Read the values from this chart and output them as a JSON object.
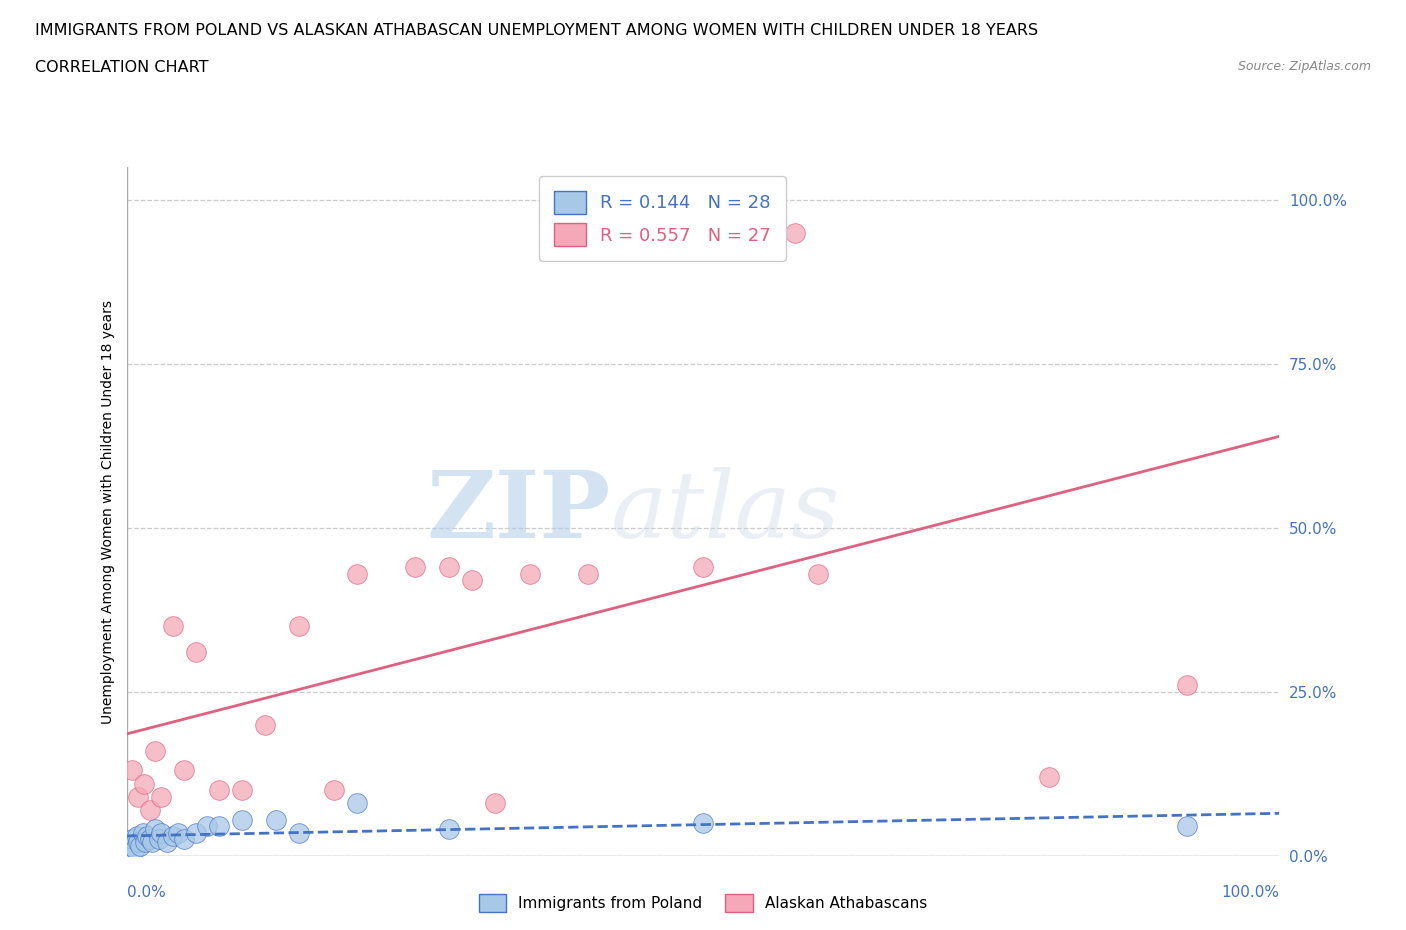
{
  "title": "IMMIGRANTS FROM POLAND VS ALASKAN ATHABASCAN UNEMPLOYMENT AMONG WOMEN WITH CHILDREN UNDER 18 YEARS",
  "subtitle": "CORRELATION CHART",
  "source": "Source: ZipAtlas.com",
  "ylabel": "Unemployment Among Women with Children Under 18 years",
  "ytick_vals": [
    0,
    25,
    50,
    75,
    100
  ],
  "xlim": [
    0,
    100
  ],
  "ylim": [
    0,
    105
  ],
  "poland_R": 0.144,
  "poland_N": 28,
  "athabascan_R": 0.557,
  "athabascan_N": 27,
  "poland_color": "#a8c8e8",
  "athabascan_color": "#f4a8b8",
  "poland_line_color": "#4472c4",
  "athabascan_line_color": "#e06080",
  "poland_x": [
    0.3,
    0.5,
    0.7,
    0.9,
    1.0,
    1.2,
    1.4,
    1.6,
    1.8,
    2.0,
    2.2,
    2.5,
    2.8,
    3.0,
    3.5,
    4.0,
    4.5,
    5.0,
    6.0,
    7.0,
    8.0,
    10.0,
    13.0,
    15.0,
    20.0,
    28.0,
    50.0,
    92.0
  ],
  "poland_y": [
    1.5,
    2.5,
    1.0,
    3.0,
    2.0,
    1.5,
    3.5,
    2.0,
    3.0,
    2.5,
    2.0,
    4.0,
    2.5,
    3.5,
    2.0,
    3.0,
    3.5,
    2.5,
    3.5,
    4.5,
    4.5,
    5.5,
    5.5,
    3.5,
    8.0,
    4.0,
    5.0,
    4.5
  ],
  "athabascan_x": [
    0.5,
    1.0,
    1.5,
    2.0,
    2.5,
    3.0,
    4.0,
    5.0,
    6.0,
    8.0,
    10.0,
    12.0,
    15.0,
    18.0,
    20.0,
    25.0,
    28.0,
    30.0,
    32.0,
    35.0,
    40.0,
    50.0,
    55.0,
    58.0,
    60.0,
    80.0,
    92.0
  ],
  "athabascan_y": [
    13.0,
    9.0,
    11.0,
    7.0,
    16.0,
    9.0,
    35.0,
    13.0,
    31.0,
    10.0,
    10.0,
    20.0,
    35.0,
    10.0,
    43.0,
    44.0,
    44.0,
    42.0,
    8.0,
    43.0,
    43.0,
    44.0,
    100.0,
    95.0,
    43.0,
    12.0,
    26.0
  ],
  "watermark_zip": "ZIP",
  "watermark_atlas": "atlas",
  "background_color": "#ffffff",
  "grid_color": "#cccccc",
  "title_fontsize": 11.5,
  "subtitle_fontsize": 11.5,
  "axis_label_fontsize": 10,
  "tick_fontsize": 11,
  "legend_fontsize": 13
}
